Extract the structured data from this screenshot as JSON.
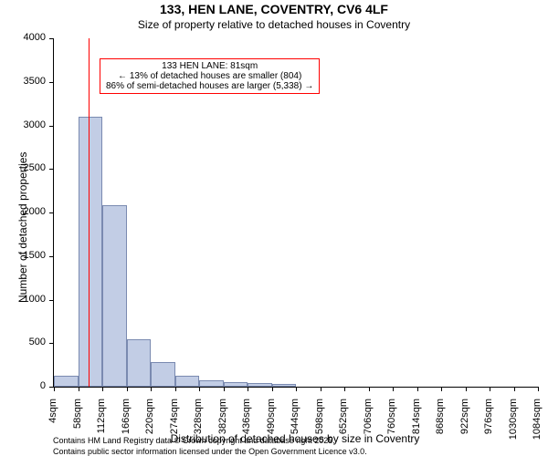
{
  "title_main": "133, HEN LANE, COVENTRY, CV6 4LF",
  "title_sub": "Size of property relative to detached houses in Coventry",
  "ylabel": "Number of detached properties",
  "xlabel": "Distribution of detached houses by size in Coventry",
  "footer1": "Contains HM Land Registry data © Crown copyright and database right 2025.",
  "footer2": "Contains public sector information licensed under the Open Government Licence v3.0.",
  "chart": {
    "type": "histogram",
    "background_color": "#ffffff",
    "bar_fill": "#c2cde5",
    "bar_border": "#7a8ab0",
    "vline_color": "#ff0000",
    "annot_border": "#ff0000",
    "axis_color": "#000000",
    "title_fontsize": 14,
    "subtitle_fontsize": 12,
    "label_fontsize": 12,
    "tick_fontsize": 11,
    "annot_fontsize": 10,
    "footer_fontsize": 9,
    "ylim": [
      0,
      4000
    ],
    "ytick_step": 500,
    "yticks": [
      0,
      500,
      1000,
      1500,
      2000,
      2500,
      3000,
      3500,
      4000
    ],
    "xtick_labels": [
      "4sqm",
      "58sqm",
      "112sqm",
      "166sqm",
      "220sqm",
      "274sqm",
      "328sqm",
      "382sqm",
      "436sqm",
      "490sqm",
      "544sqm",
      "598sqm",
      "652sqm",
      "706sqm",
      "760sqm",
      "814sqm",
      "868sqm",
      "922sqm",
      "976sqm",
      "1030sqm",
      "1084sqm"
    ],
    "bar_values": [
      130,
      3100,
      2080,
      540,
      280,
      130,
      70,
      50,
      40,
      30,
      0,
      0,
      0,
      0,
      0,
      0,
      0,
      0,
      0,
      0
    ],
    "marker_sqm": 81,
    "x_min": 4,
    "x_max": 1084,
    "annot_line1": "133 HEN LANE: 81sqm",
    "annot_line2": "← 13% of detached houses are smaller (804)",
    "annot_line3": "86% of semi-detached houses are larger (5,338) →"
  }
}
